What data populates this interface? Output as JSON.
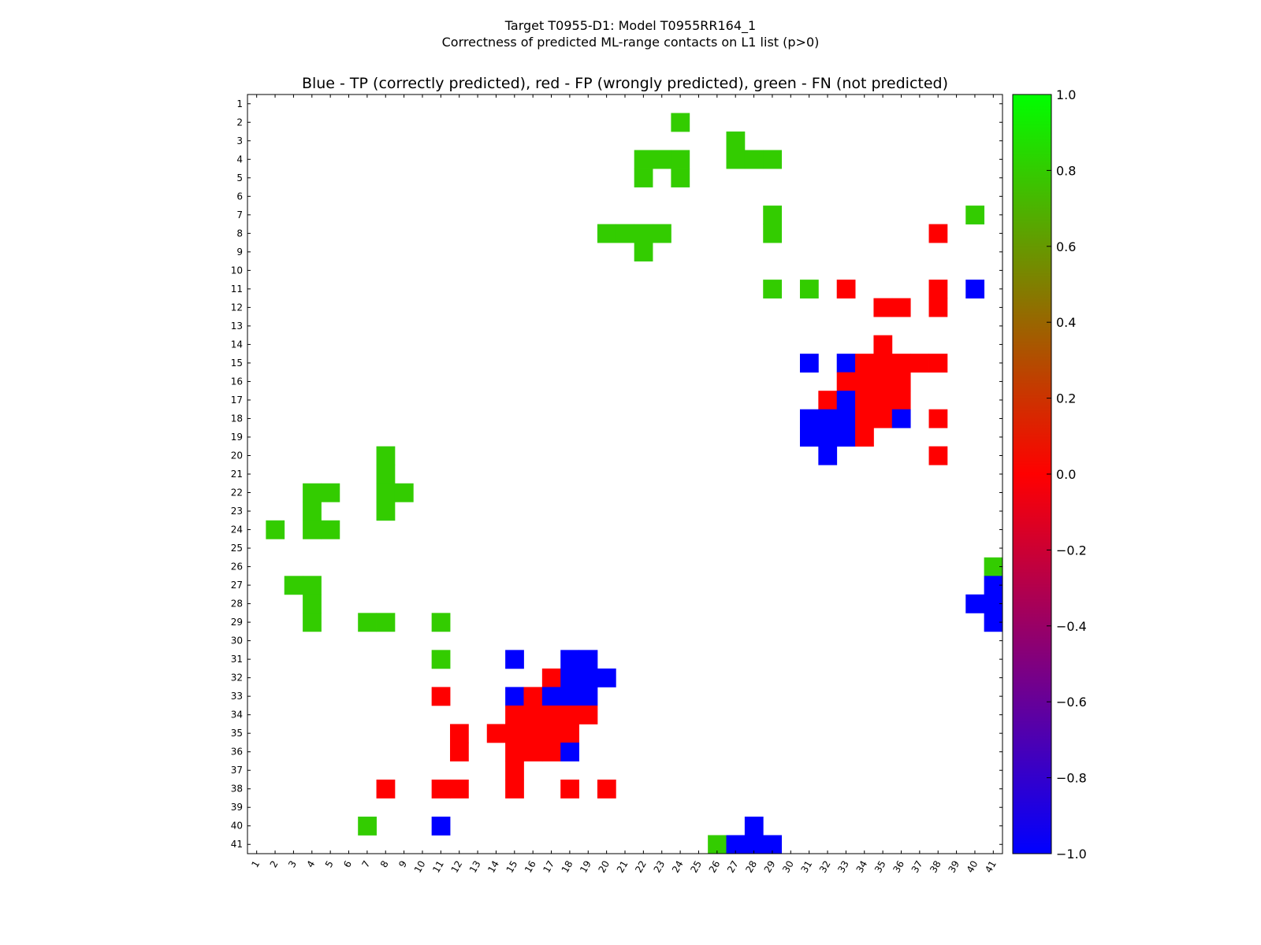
{
  "figure": {
    "title_line1": "Target T0955-D1: Model T0955RR164_1",
    "title_line2": "Correctness of predicted ML-range contacts on L1 list (p>0)"
  },
  "chart_data": {
    "type": "heatmap",
    "title": "Blue - TP (correctly predicted), red - FP (wrongly predicted), green - FN (not predicted)",
    "xlabel": "",
    "ylabel": "",
    "n": 41,
    "x_ticks": [
      "1",
      "2",
      "3",
      "4",
      "5",
      "6",
      "7",
      "8",
      "9",
      "10",
      "11",
      "12",
      "13",
      "14",
      "15",
      "16",
      "17",
      "18",
      "19",
      "20",
      "21",
      "22",
      "23",
      "24",
      "25",
      "26",
      "27",
      "28",
      "29",
      "30",
      "31",
      "32",
      "33",
      "34",
      "35",
      "36",
      "37",
      "38",
      "39",
      "40",
      "41"
    ],
    "y_ticks": [
      "1",
      "2",
      "3",
      "4",
      "5",
      "6",
      "7",
      "8",
      "9",
      "10",
      "11",
      "12",
      "13",
      "14",
      "15",
      "16",
      "17",
      "18",
      "19",
      "20",
      "21",
      "22",
      "23",
      "24",
      "25",
      "26",
      "27",
      "28",
      "29",
      "30",
      "31",
      "32",
      "33",
      "34",
      "35",
      "36",
      "37",
      "38",
      "39",
      "40",
      "41"
    ],
    "value_legend": {
      "tp": -1.0,
      "fp": 0.0,
      "fn": 0.8
    },
    "colorbar": {
      "min": -1.0,
      "max": 1.0,
      "ticks": [
        "1.0",
        "0.8",
        "0.6",
        "0.4",
        "0.2",
        "0.0",
        "−0.2",
        "−0.4",
        "−0.6",
        "−0.8",
        "−1.0"
      ],
      "colors": [
        "#0000ff",
        "#ff0000",
        "#00ff00"
      ]
    },
    "colors": {
      "tp": "#0000ff",
      "fp": "#ff0000",
      "fn": "#33cc00"
    },
    "cells": [
      {
        "row": 2,
        "col": 24,
        "value": 0.8
      },
      {
        "row": 3,
        "col": 27,
        "value": 0.8
      },
      {
        "row": 4,
        "col": 22,
        "value": 0.8
      },
      {
        "row": 4,
        "col": 23,
        "value": 0.8
      },
      {
        "row": 4,
        "col": 24,
        "value": 0.8
      },
      {
        "row": 4,
        "col": 27,
        "value": 0.8
      },
      {
        "row": 4,
        "col": 28,
        "value": 0.8
      },
      {
        "row": 4,
        "col": 29,
        "value": 0.8
      },
      {
        "row": 5,
        "col": 22,
        "value": 0.8
      },
      {
        "row": 5,
        "col": 24,
        "value": 0.8
      },
      {
        "row": 7,
        "col": 29,
        "value": 0.8
      },
      {
        "row": 7,
        "col": 40,
        "value": 0.8
      },
      {
        "row": 8,
        "col": 20,
        "value": 0.8
      },
      {
        "row": 8,
        "col": 21,
        "value": 0.8
      },
      {
        "row": 8,
        "col": 22,
        "value": 0.8
      },
      {
        "row": 8,
        "col": 23,
        "value": 0.8
      },
      {
        "row": 8,
        "col": 29,
        "value": 0.8
      },
      {
        "row": 8,
        "col": 38,
        "value": 0.0
      },
      {
        "row": 9,
        "col": 22,
        "value": 0.8
      },
      {
        "row": 11,
        "col": 29,
        "value": 0.8
      },
      {
        "row": 11,
        "col": 31,
        "value": 0.8
      },
      {
        "row": 11,
        "col": 33,
        "value": 0.0
      },
      {
        "row": 11,
        "col": 38,
        "value": 0.0
      },
      {
        "row": 11,
        "col": 40,
        "value": -1.0
      },
      {
        "row": 12,
        "col": 35,
        "value": 0.0
      },
      {
        "row": 12,
        "col": 36,
        "value": 0.0
      },
      {
        "row": 12,
        "col": 38,
        "value": 0.0
      },
      {
        "row": 14,
        "col": 35,
        "value": 0.0
      },
      {
        "row": 15,
        "col": 31,
        "value": -1.0
      },
      {
        "row": 15,
        "col": 33,
        "value": -1.0
      },
      {
        "row": 15,
        "col": 34,
        "value": 0.0
      },
      {
        "row": 15,
        "col": 35,
        "value": 0.0
      },
      {
        "row": 15,
        "col": 36,
        "value": 0.0
      },
      {
        "row": 15,
        "col": 37,
        "value": 0.0
      },
      {
        "row": 15,
        "col": 38,
        "value": 0.0
      },
      {
        "row": 16,
        "col": 33,
        "value": 0.0
      },
      {
        "row": 16,
        "col": 34,
        "value": 0.0
      },
      {
        "row": 16,
        "col": 35,
        "value": 0.0
      },
      {
        "row": 16,
        "col": 36,
        "value": 0.0
      },
      {
        "row": 17,
        "col": 32,
        "value": 0.0
      },
      {
        "row": 17,
        "col": 33,
        "value": -1.0
      },
      {
        "row": 17,
        "col": 34,
        "value": 0.0
      },
      {
        "row": 17,
        "col": 35,
        "value": 0.0
      },
      {
        "row": 17,
        "col": 36,
        "value": 0.0
      },
      {
        "row": 18,
        "col": 31,
        "value": -1.0
      },
      {
        "row": 18,
        "col": 32,
        "value": -1.0
      },
      {
        "row": 18,
        "col": 33,
        "value": -1.0
      },
      {
        "row": 18,
        "col": 34,
        "value": 0.0
      },
      {
        "row": 18,
        "col": 35,
        "value": 0.0
      },
      {
        "row": 18,
        "col": 36,
        "value": -1.0
      },
      {
        "row": 18,
        "col": 38,
        "value": 0.0
      },
      {
        "row": 19,
        "col": 31,
        "value": -1.0
      },
      {
        "row": 19,
        "col": 32,
        "value": -1.0
      },
      {
        "row": 19,
        "col": 33,
        "value": -1.0
      },
      {
        "row": 19,
        "col": 34,
        "value": 0.0
      },
      {
        "row": 20,
        "col": 8,
        "value": 0.8
      },
      {
        "row": 20,
        "col": 32,
        "value": -1.0
      },
      {
        "row": 20,
        "col": 38,
        "value": 0.0
      },
      {
        "row": 21,
        "col": 8,
        "value": 0.8
      },
      {
        "row": 22,
        "col": 4,
        "value": 0.8
      },
      {
        "row": 22,
        "col": 5,
        "value": 0.8
      },
      {
        "row": 22,
        "col": 8,
        "value": 0.8
      },
      {
        "row": 22,
        "col": 9,
        "value": 0.8
      },
      {
        "row": 23,
        "col": 4,
        "value": 0.8
      },
      {
        "row": 23,
        "col": 8,
        "value": 0.8
      },
      {
        "row": 24,
        "col": 2,
        "value": 0.8
      },
      {
        "row": 24,
        "col": 4,
        "value": 0.8
      },
      {
        "row": 24,
        "col": 5,
        "value": 0.8
      },
      {
        "row": 26,
        "col": 41,
        "value": 0.8
      },
      {
        "row": 27,
        "col": 3,
        "value": 0.8
      },
      {
        "row": 27,
        "col": 4,
        "value": 0.8
      },
      {
        "row": 27,
        "col": 41,
        "value": -1.0
      },
      {
        "row": 28,
        "col": 4,
        "value": 0.8
      },
      {
        "row": 28,
        "col": 40,
        "value": -1.0
      },
      {
        "row": 28,
        "col": 41,
        "value": -1.0
      },
      {
        "row": 29,
        "col": 4,
        "value": 0.8
      },
      {
        "row": 29,
        "col": 7,
        "value": 0.8
      },
      {
        "row": 29,
        "col": 8,
        "value": 0.8
      },
      {
        "row": 29,
        "col": 11,
        "value": 0.8
      },
      {
        "row": 29,
        "col": 41,
        "value": -1.0
      },
      {
        "row": 31,
        "col": 11,
        "value": 0.8
      },
      {
        "row": 31,
        "col": 15,
        "value": -1.0
      },
      {
        "row": 31,
        "col": 18,
        "value": -1.0
      },
      {
        "row": 31,
        "col": 19,
        "value": -1.0
      },
      {
        "row": 32,
        "col": 17,
        "value": 0.0
      },
      {
        "row": 32,
        "col": 18,
        "value": -1.0
      },
      {
        "row": 32,
        "col": 19,
        "value": -1.0
      },
      {
        "row": 32,
        "col": 20,
        "value": -1.0
      },
      {
        "row": 33,
        "col": 11,
        "value": 0.0
      },
      {
        "row": 33,
        "col": 15,
        "value": -1.0
      },
      {
        "row": 33,
        "col": 16,
        "value": 0.0
      },
      {
        "row": 33,
        "col": 17,
        "value": -1.0
      },
      {
        "row": 33,
        "col": 18,
        "value": -1.0
      },
      {
        "row": 33,
        "col": 19,
        "value": -1.0
      },
      {
        "row": 34,
        "col": 15,
        "value": 0.0
      },
      {
        "row": 34,
        "col": 16,
        "value": 0.0
      },
      {
        "row": 34,
        "col": 17,
        "value": 0.0
      },
      {
        "row": 34,
        "col": 18,
        "value": 0.0
      },
      {
        "row": 34,
        "col": 19,
        "value": 0.0
      },
      {
        "row": 35,
        "col": 12,
        "value": 0.0
      },
      {
        "row": 35,
        "col": 14,
        "value": 0.0
      },
      {
        "row": 35,
        "col": 15,
        "value": 0.0
      },
      {
        "row": 35,
        "col": 16,
        "value": 0.0
      },
      {
        "row": 35,
        "col": 17,
        "value": 0.0
      },
      {
        "row": 35,
        "col": 18,
        "value": 0.0
      },
      {
        "row": 36,
        "col": 12,
        "value": 0.0
      },
      {
        "row": 36,
        "col": 15,
        "value": 0.0
      },
      {
        "row": 36,
        "col": 16,
        "value": 0.0
      },
      {
        "row": 36,
        "col": 17,
        "value": 0.0
      },
      {
        "row": 36,
        "col": 18,
        "value": -1.0
      },
      {
        "row": 37,
        "col": 15,
        "value": 0.0
      },
      {
        "row": 38,
        "col": 8,
        "value": 0.0
      },
      {
        "row": 38,
        "col": 11,
        "value": 0.0
      },
      {
        "row": 38,
        "col": 12,
        "value": 0.0
      },
      {
        "row": 38,
        "col": 15,
        "value": 0.0
      },
      {
        "row": 38,
        "col": 18,
        "value": 0.0
      },
      {
        "row": 38,
        "col": 20,
        "value": 0.0
      },
      {
        "row": 40,
        "col": 7,
        "value": 0.8
      },
      {
        "row": 40,
        "col": 11,
        "value": -1.0
      },
      {
        "row": 40,
        "col": 28,
        "value": -1.0
      },
      {
        "row": 41,
        "col": 26,
        "value": 0.8
      },
      {
        "row": 41,
        "col": 27,
        "value": -1.0
      },
      {
        "row": 41,
        "col": 28,
        "value": -1.0
      },
      {
        "row": 41,
        "col": 29,
        "value": -1.0
      }
    ]
  }
}
